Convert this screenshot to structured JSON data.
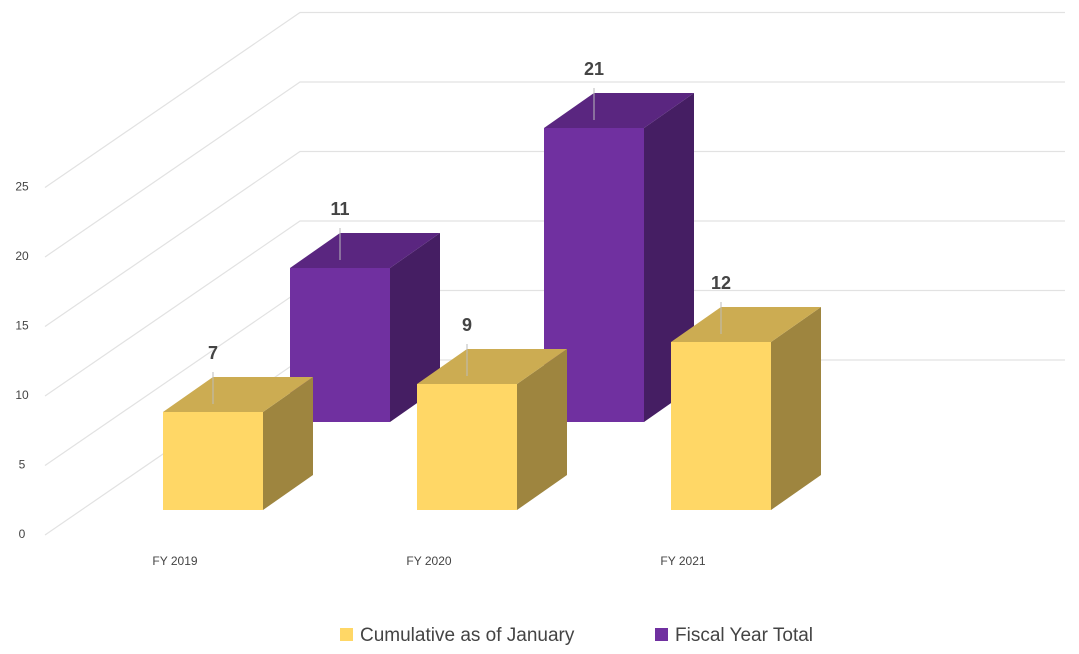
{
  "chart_data": {
    "type": "bar3d",
    "categories": [
      "FY 2019",
      "FY 2020",
      "FY 2021"
    ],
    "series": [
      {
        "name": "Cumulative as of January",
        "color": "#ffd766",
        "values": [
          7,
          9,
          12
        ]
      },
      {
        "name": "Fiscal Year Total",
        "color": "#7030a0",
        "values": [
          11,
          21,
          null
        ]
      }
    ],
    "ylim": [
      0,
      30
    ],
    "yticks": [
      0,
      5,
      10,
      15,
      20,
      25
    ],
    "grid": true,
    "legend": "bottom"
  }
}
